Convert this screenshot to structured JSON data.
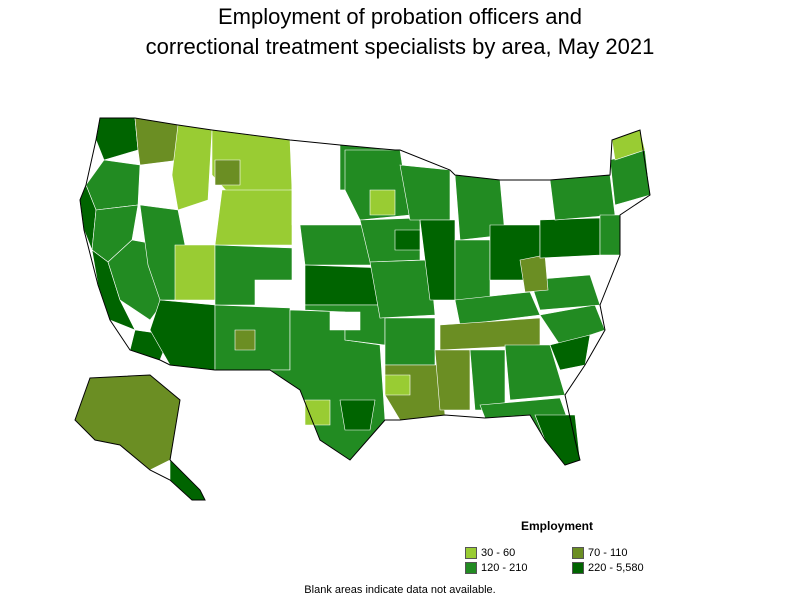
{
  "title": {
    "line1": "Employment of probation officers and",
    "line2": "correctional treatment specialists by area, May 2021"
  },
  "legend": {
    "title": "Employment",
    "items": [
      {
        "label": "30 - 60",
        "color": "#99cc33"
      },
      {
        "label": "70 - 110",
        "color": "#6b8e23"
      },
      {
        "label": "120 - 210",
        "color": "#228b22"
      },
      {
        "label": "220 - 5,580",
        "color": "#006400"
      }
    ]
  },
  "footnote": "Blank areas indicate data not available.",
  "colors": {
    "no_data": "#ffffff",
    "border": "#000000",
    "c1": "#99cc33",
    "c2": "#6b8e23",
    "c3": "#228b22",
    "c4": "#006400"
  }
}
